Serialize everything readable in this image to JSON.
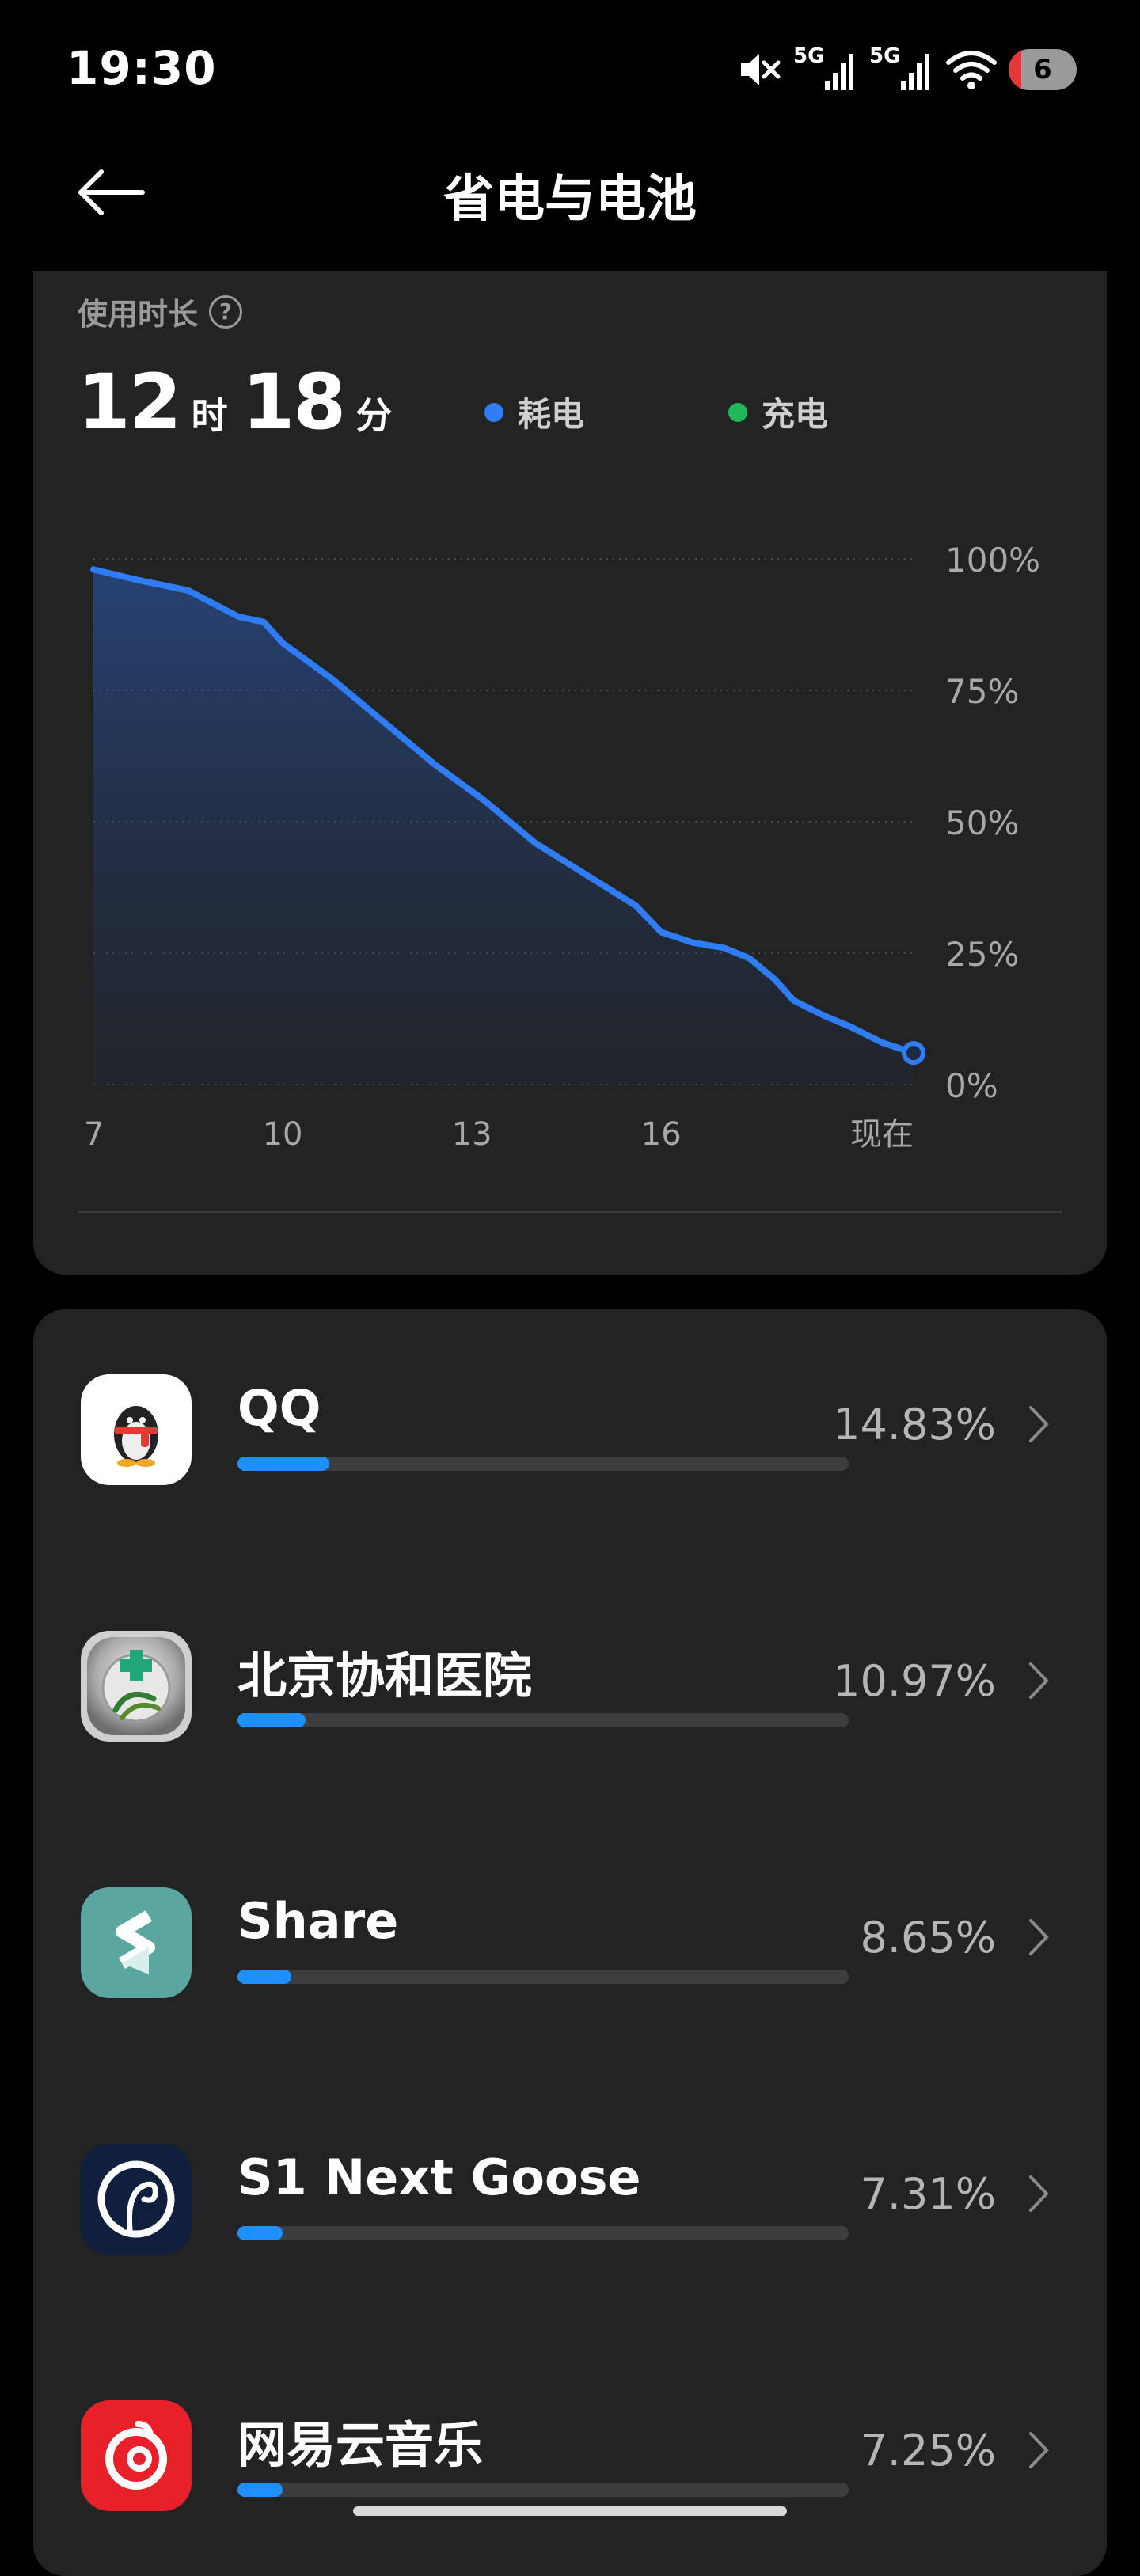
{
  "status_bar": {
    "time": "19:30",
    "network_1": "5G",
    "network_2": "5G",
    "battery_level": "6",
    "icons": [
      "mute-icon",
      "signal-icon",
      "signal-icon",
      "wifi-icon",
      "battery-icon"
    ]
  },
  "header": {
    "back_icon": "arrow-left-icon",
    "title": "省电与电池"
  },
  "usage": {
    "label": "使用时长",
    "help_icon": "?",
    "hours": "12",
    "hours_unit": "时",
    "minutes": "18",
    "minutes_unit": "分",
    "legend": [
      {
        "label": "耗电",
        "color": "#2f7df6"
      },
      {
        "label": "充电",
        "color": "#1fb85a"
      }
    ]
  },
  "chart_data": {
    "type": "area",
    "x_ticks": [
      "7",
      "10",
      "13",
      "16",
      "现在"
    ],
    "y_ticks": [
      "100%",
      "75%",
      "50%",
      "25%",
      "0%"
    ],
    "ylim": [
      0,
      100
    ],
    "xlim": [
      7,
      20
    ],
    "series": [
      {
        "color": "#2f7df6",
        "x": [
          7,
          7.7,
          8.5,
          9.3,
          9.7,
          10,
          10.8,
          11.6,
          12.4,
          13.2,
          14,
          14.8,
          15.6,
          16,
          16.5,
          17,
          17.4,
          17.8,
          18.1,
          18.6,
          19,
          19.5,
          20
        ],
        "y": [
          98,
          96,
          94,
          89,
          88,
          84,
          77,
          69,
          61,
          54,
          46,
          40,
          34,
          29,
          27,
          26,
          24,
          20,
          16,
          13,
          11,
          8,
          6
        ]
      }
    ]
  },
  "apps": [
    {
      "name": "QQ",
      "percent": "14.83%",
      "fraction": 0.1483,
      "icon": "qq-icon"
    },
    {
      "name": "北京协和医院",
      "percent": "10.97%",
      "fraction": 0.1097,
      "icon": "pumch-hospital-icon"
    },
    {
      "name": "Share",
      "percent": "8.65%",
      "fraction": 0.0865,
      "icon": "share-app-icon"
    },
    {
      "name": "S1 Next Goose",
      "percent": "7.31%",
      "fraction": 0.0731,
      "icon": "s1-next-goose-icon"
    },
    {
      "name": "网易云音乐",
      "percent": "7.25%",
      "fraction": 0.0725,
      "icon": "netease-music-icon"
    }
  ]
}
